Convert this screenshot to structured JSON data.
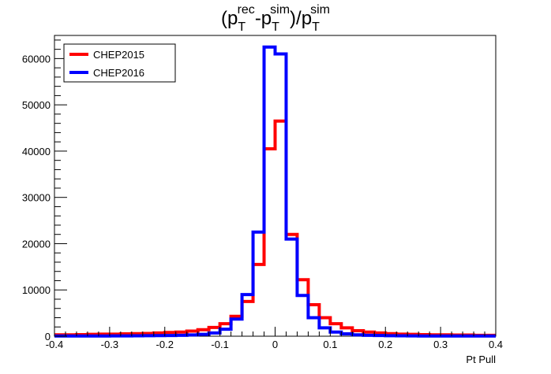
{
  "chart_data": {
    "type": "histogram",
    "title": {
      "base": "(p",
      "sub1": "T",
      "sup1": "rec",
      "mid": "-p",
      "sub2": "T",
      "sup2": "sim",
      "end": ")/p",
      "sub3": "T",
      "sup3": "sim"
    },
    "xlabel": "Pt Pull",
    "ylabel": "",
    "xlim": [
      -0.4,
      0.4
    ],
    "ylim": [
      0,
      65000
    ],
    "x_ticks": [
      "-0.4",
      "-0.3",
      "-0.2",
      "-0.1",
      "0",
      "0.1",
      "0.2",
      "0.3",
      "0.4"
    ],
    "y_ticks": [
      "0",
      "10000",
      "20000",
      "30000",
      "40000",
      "50000",
      "60000"
    ],
    "bin_edges": [
      -0.4,
      -0.38,
      -0.36,
      -0.34,
      -0.32,
      -0.3,
      -0.28,
      -0.26,
      -0.24,
      -0.22,
      -0.2,
      -0.18,
      -0.16,
      -0.14,
      -0.12,
      -0.1,
      -0.08,
      -0.06,
      -0.04,
      -0.02,
      0.0,
      0.02,
      0.04,
      0.06,
      0.08,
      0.1,
      0.12,
      0.14,
      0.16,
      0.18,
      0.2,
      0.22,
      0.24,
      0.26,
      0.28,
      0.3,
      0.32,
      0.34,
      0.36,
      0.38,
      0.4
    ],
    "series": [
      {
        "name": "CHEP2015",
        "color": "#ff0000",
        "values": [
          300,
          300,
          350,
          400,
          450,
          450,
          500,
          550,
          600,
          700,
          800,
          900,
          1100,
          1400,
          1900,
          2700,
          4300,
          7500,
          15500,
          40500,
          46500,
          22000,
          12200,
          6800,
          4000,
          2700,
          1800,
          1200,
          900,
          700,
          550,
          450,
          400,
          350,
          300,
          300,
          250,
          250,
          200,
          200
        ]
      },
      {
        "name": "CHEP2016",
        "color": "#0000ff",
        "values": [
          50,
          50,
          50,
          50,
          50,
          60,
          70,
          80,
          100,
          120,
          150,
          200,
          280,
          400,
          700,
          1500,
          3700,
          9000,
          22500,
          62500,
          61000,
          21000,
          8800,
          4000,
          1800,
          900,
          500,
          300,
          200,
          150,
          100,
          80,
          60,
          50,
          50,
          50,
          50,
          50,
          50,
          50
        ]
      }
    ],
    "legend_placement": "top-left",
    "grid": false
  }
}
